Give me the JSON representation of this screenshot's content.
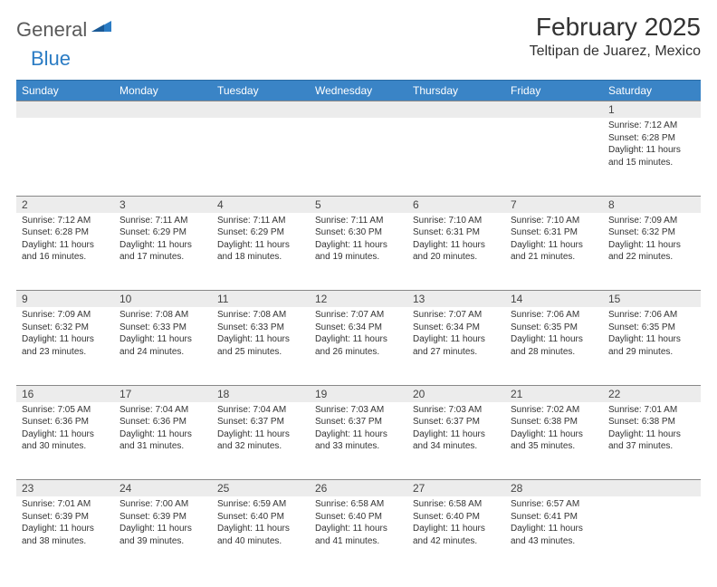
{
  "logo": {
    "general": "General",
    "blue": "Blue"
  },
  "title": {
    "month": "February 2025",
    "location": "Teltipan de Juarez, Mexico"
  },
  "colors": {
    "header_bg": "#3a84c6",
    "header_border": "#2b6da6",
    "daynum_bg": "#ececec",
    "daynum_border": "#888888",
    "text": "#333333",
    "logo_gray": "#5a5a5a",
    "logo_blue": "#2b7cc4"
  },
  "weekdays": [
    "Sunday",
    "Monday",
    "Tuesday",
    "Wednesday",
    "Thursday",
    "Friday",
    "Saturday"
  ],
  "weeks": [
    [
      null,
      null,
      null,
      null,
      null,
      null,
      {
        "d": "1",
        "sr": "7:12 AM",
        "ss": "6:28 PM",
        "dl": "11 hours and 15 minutes."
      }
    ],
    [
      {
        "d": "2",
        "sr": "7:12 AM",
        "ss": "6:28 PM",
        "dl": "11 hours and 16 minutes."
      },
      {
        "d": "3",
        "sr": "7:11 AM",
        "ss": "6:29 PM",
        "dl": "11 hours and 17 minutes."
      },
      {
        "d": "4",
        "sr": "7:11 AM",
        "ss": "6:29 PM",
        "dl": "11 hours and 18 minutes."
      },
      {
        "d": "5",
        "sr": "7:11 AM",
        "ss": "6:30 PM",
        "dl": "11 hours and 19 minutes."
      },
      {
        "d": "6",
        "sr": "7:10 AM",
        "ss": "6:31 PM",
        "dl": "11 hours and 20 minutes."
      },
      {
        "d": "7",
        "sr": "7:10 AM",
        "ss": "6:31 PM",
        "dl": "11 hours and 21 minutes."
      },
      {
        "d": "8",
        "sr": "7:09 AM",
        "ss": "6:32 PM",
        "dl": "11 hours and 22 minutes."
      }
    ],
    [
      {
        "d": "9",
        "sr": "7:09 AM",
        "ss": "6:32 PM",
        "dl": "11 hours and 23 minutes."
      },
      {
        "d": "10",
        "sr": "7:08 AM",
        "ss": "6:33 PM",
        "dl": "11 hours and 24 minutes."
      },
      {
        "d": "11",
        "sr": "7:08 AM",
        "ss": "6:33 PM",
        "dl": "11 hours and 25 minutes."
      },
      {
        "d": "12",
        "sr": "7:07 AM",
        "ss": "6:34 PM",
        "dl": "11 hours and 26 minutes."
      },
      {
        "d": "13",
        "sr": "7:07 AM",
        "ss": "6:34 PM",
        "dl": "11 hours and 27 minutes."
      },
      {
        "d": "14",
        "sr": "7:06 AM",
        "ss": "6:35 PM",
        "dl": "11 hours and 28 minutes."
      },
      {
        "d": "15",
        "sr": "7:06 AM",
        "ss": "6:35 PM",
        "dl": "11 hours and 29 minutes."
      }
    ],
    [
      {
        "d": "16",
        "sr": "7:05 AM",
        "ss": "6:36 PM",
        "dl": "11 hours and 30 minutes."
      },
      {
        "d": "17",
        "sr": "7:04 AM",
        "ss": "6:36 PM",
        "dl": "11 hours and 31 minutes."
      },
      {
        "d": "18",
        "sr": "7:04 AM",
        "ss": "6:37 PM",
        "dl": "11 hours and 32 minutes."
      },
      {
        "d": "19",
        "sr": "7:03 AM",
        "ss": "6:37 PM",
        "dl": "11 hours and 33 minutes."
      },
      {
        "d": "20",
        "sr": "7:03 AM",
        "ss": "6:37 PM",
        "dl": "11 hours and 34 minutes."
      },
      {
        "d": "21",
        "sr": "7:02 AM",
        "ss": "6:38 PM",
        "dl": "11 hours and 35 minutes."
      },
      {
        "d": "22",
        "sr": "7:01 AM",
        "ss": "6:38 PM",
        "dl": "11 hours and 37 minutes."
      }
    ],
    [
      {
        "d": "23",
        "sr": "7:01 AM",
        "ss": "6:39 PM",
        "dl": "11 hours and 38 minutes."
      },
      {
        "d": "24",
        "sr": "7:00 AM",
        "ss": "6:39 PM",
        "dl": "11 hours and 39 minutes."
      },
      {
        "d": "25",
        "sr": "6:59 AM",
        "ss": "6:40 PM",
        "dl": "11 hours and 40 minutes."
      },
      {
        "d": "26",
        "sr": "6:58 AM",
        "ss": "6:40 PM",
        "dl": "11 hours and 41 minutes."
      },
      {
        "d": "27",
        "sr": "6:58 AM",
        "ss": "6:40 PM",
        "dl": "11 hours and 42 minutes."
      },
      {
        "d": "28",
        "sr": "6:57 AM",
        "ss": "6:41 PM",
        "dl": "11 hours and 43 minutes."
      },
      null
    ]
  ],
  "labels": {
    "sunrise": "Sunrise:",
    "sunset": "Sunset:",
    "daylight": "Daylight:"
  }
}
